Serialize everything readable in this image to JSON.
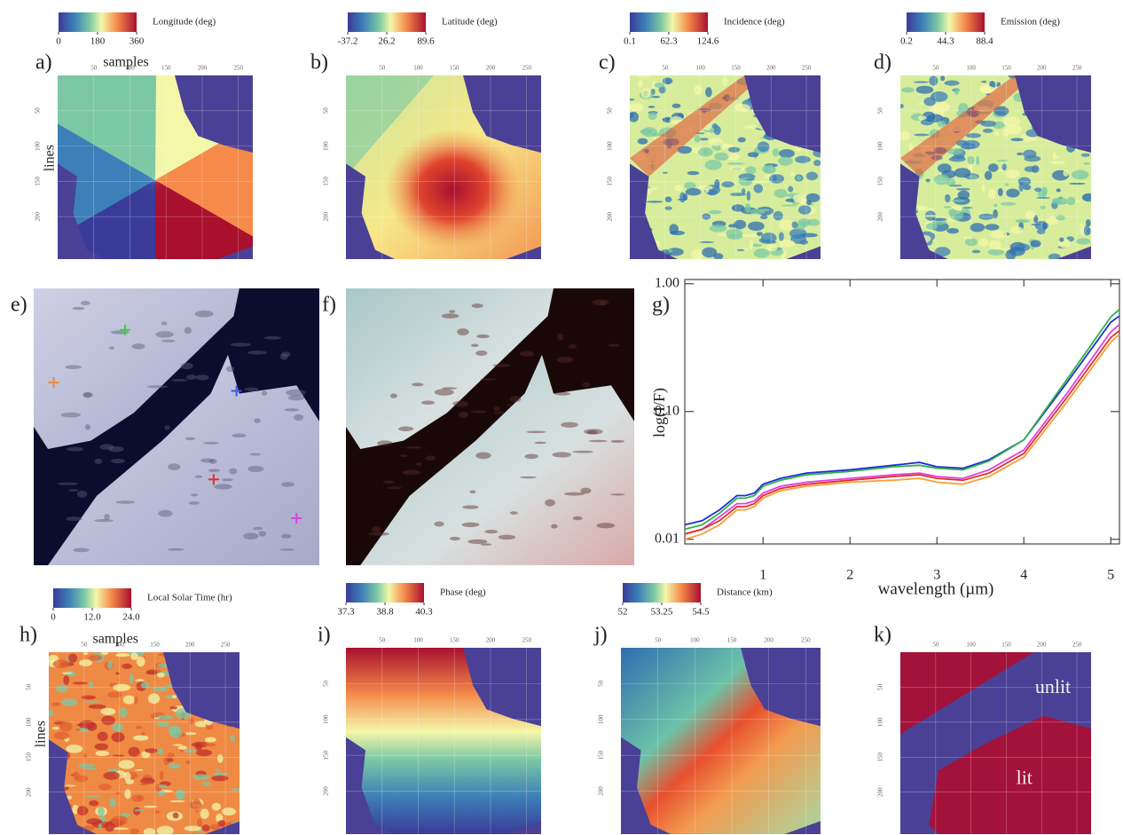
{
  "panels": [
    {
      "letter": "a)",
      "colorbar": {
        "title": "Longitude (deg)",
        "ticks": [
          0,
          180,
          360
        ]
      },
      "xlabel": "samples",
      "ylabel": "lines"
    },
    {
      "letter": "b)",
      "colorbar": {
        "title": "Latitude (deg)",
        "ticks": [
          -37.2,
          26.2,
          89.6
        ]
      }
    },
    {
      "letter": "c)",
      "colorbar": {
        "title": "Incidence (deg)",
        "ticks": [
          0.1,
          62.3,
          124.6
        ]
      }
    },
    {
      "letter": "d)",
      "colorbar": {
        "title": "Emission (deg)",
        "ticks": [
          0.2,
          44.3,
          88.4
        ]
      }
    },
    {
      "letter": "e)"
    },
    {
      "letter": "f)"
    },
    {
      "letter": "g)"
    },
    {
      "letter": "h)",
      "colorbar": {
        "title": "Local Solar Time (hr)",
        "ticks": [
          0,
          {
            "value": 12,
            "label": "12.0"
          },
          {
            "value": 24,
            "label": "24.0"
          }
        ]
      },
      "xlabel": "samples",
      "ylabel": "lines"
    },
    {
      "letter": "i)",
      "colorbar": {
        "title": "Phase (deg)",
        "ticks": [
          37.3,
          38.8,
          40.3
        ]
      }
    },
    {
      "letter": "j)",
      "colorbar": {
        "title": "Distance (km)",
        "ticks": [
          52,
          53.25,
          54.5
        ]
      }
    },
    {
      "letter": "k)",
      "annotations": [
        "unlit",
        "lit"
      ]
    }
  ],
  "map_axes": {
    "xticks": [
      50,
      100,
      150,
      200,
      250
    ],
    "yticks": [
      50,
      100,
      150,
      200
    ]
  },
  "chart_data": {
    "type": "line",
    "xlabel": "wavelength (µm)",
    "ylabel": "log(I/F)",
    "log_y": true,
    "x": [
      0.1,
      0.3,
      0.5,
      0.7,
      0.8,
      0.9,
      1.0,
      1.2,
      1.5,
      2.0,
      2.5,
      2.8,
      3.0,
      3.3,
      3.6,
      4.0,
      4.5,
      5.0,
      5.1
    ],
    "xlim": [
      0.1,
      5.1
    ],
    "xticks": [
      1,
      2,
      3,
      4,
      5
    ],
    "ylim": [
      0.0092,
      1.08
    ],
    "yticks": [
      0.01,
      {
        "value": 0.1,
        "label": "0.10"
      },
      {
        "value": 1,
        "label": "1.00"
      }
    ],
    "series": [
      {
        "color": "#1f2fd6",
        "values": [
          0.013,
          0.014,
          0.017,
          0.022,
          0.022,
          0.023,
          0.027,
          0.03,
          0.033,
          0.035,
          0.038,
          0.04,
          0.037,
          0.036,
          0.042,
          0.06,
          0.17,
          0.5,
          0.56
        ]
      },
      {
        "color": "#2fb34a",
        "values": [
          0.012,
          0.013,
          0.016,
          0.021,
          0.021,
          0.022,
          0.026,
          0.029,
          0.032,
          0.034,
          0.037,
          0.038,
          0.036,
          0.035,
          0.041,
          0.06,
          0.18,
          0.55,
          0.63
        ]
      },
      {
        "color": "#e040e0",
        "values": [
          0.011,
          0.012,
          0.015,
          0.019,
          0.019,
          0.02,
          0.023,
          0.026,
          0.028,
          0.03,
          0.032,
          0.033,
          0.031,
          0.03,
          0.035,
          0.05,
          0.14,
          0.42,
          0.48
        ]
      },
      {
        "color": "#e0302a",
        "values": [
          0.011,
          0.012,
          0.014,
          0.018,
          0.018,
          0.019,
          0.022,
          0.025,
          0.027,
          0.029,
          0.031,
          0.032,
          0.03,
          0.029,
          0.033,
          0.047,
          0.13,
          0.38,
          0.43
        ]
      },
      {
        "color": "#f5a03a",
        "values": [
          0.01,
          0.011,
          0.013,
          0.017,
          0.017,
          0.018,
          0.021,
          0.024,
          0.026,
          0.028,
          0.029,
          0.03,
          0.028,
          0.027,
          0.031,
          0.044,
          0.12,
          0.35,
          0.4
        ]
      }
    ]
  }
}
